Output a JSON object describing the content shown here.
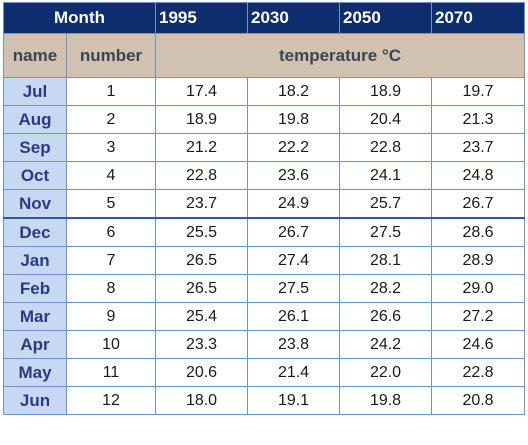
{
  "table": {
    "header": {
      "month": "Month",
      "years": [
        "1995",
        "2030",
        "2050",
        "2070"
      ]
    },
    "subheader": {
      "name": "name",
      "number": "number",
      "temperature": "temperature °C"
    },
    "rows": [
      {
        "name": "Jul",
        "number": "1",
        "values": [
          "17.4",
          "18.2",
          "18.9",
          "19.7"
        ]
      },
      {
        "name": "Aug",
        "number": "2",
        "values": [
          "18.9",
          "19.8",
          "20.4",
          "21.3"
        ]
      },
      {
        "name": "Sep",
        "number": "3",
        "values": [
          "21.2",
          "22.2",
          "22.8",
          "23.7"
        ]
      },
      {
        "name": "Oct",
        "number": "4",
        "values": [
          "22.8",
          "23.6",
          "24.1",
          "24.8"
        ]
      },
      {
        "name": "Nov",
        "number": "5",
        "values": [
          "23.7",
          "24.9",
          "25.7",
          "26.7"
        ]
      },
      {
        "name": "Dec",
        "number": "6",
        "values": [
          "25.5",
          "26.7",
          "27.5",
          "28.6"
        ]
      },
      {
        "name": "Jan",
        "number": "7",
        "values": [
          "26.5",
          "27.4",
          "28.1",
          "28.9"
        ]
      },
      {
        "name": "Feb",
        "number": "8",
        "values": [
          "26.5",
          "27.5",
          "28.2",
          "29.0"
        ]
      },
      {
        "name": "Mar",
        "number": "9",
        "values": [
          "25.4",
          "26.1",
          "26.6",
          "27.2"
        ]
      },
      {
        "name": "Apr",
        "number": "10",
        "values": [
          "23.3",
          "23.8",
          "24.2",
          "24.6"
        ]
      },
      {
        "name": "May",
        "number": "11",
        "values": [
          "20.6",
          "21.4",
          "22.0",
          "22.8"
        ]
      },
      {
        "name": "Jun",
        "number": "12",
        "values": [
          "18.0",
          "19.1",
          "19.8",
          "20.8"
        ]
      }
    ]
  }
}
